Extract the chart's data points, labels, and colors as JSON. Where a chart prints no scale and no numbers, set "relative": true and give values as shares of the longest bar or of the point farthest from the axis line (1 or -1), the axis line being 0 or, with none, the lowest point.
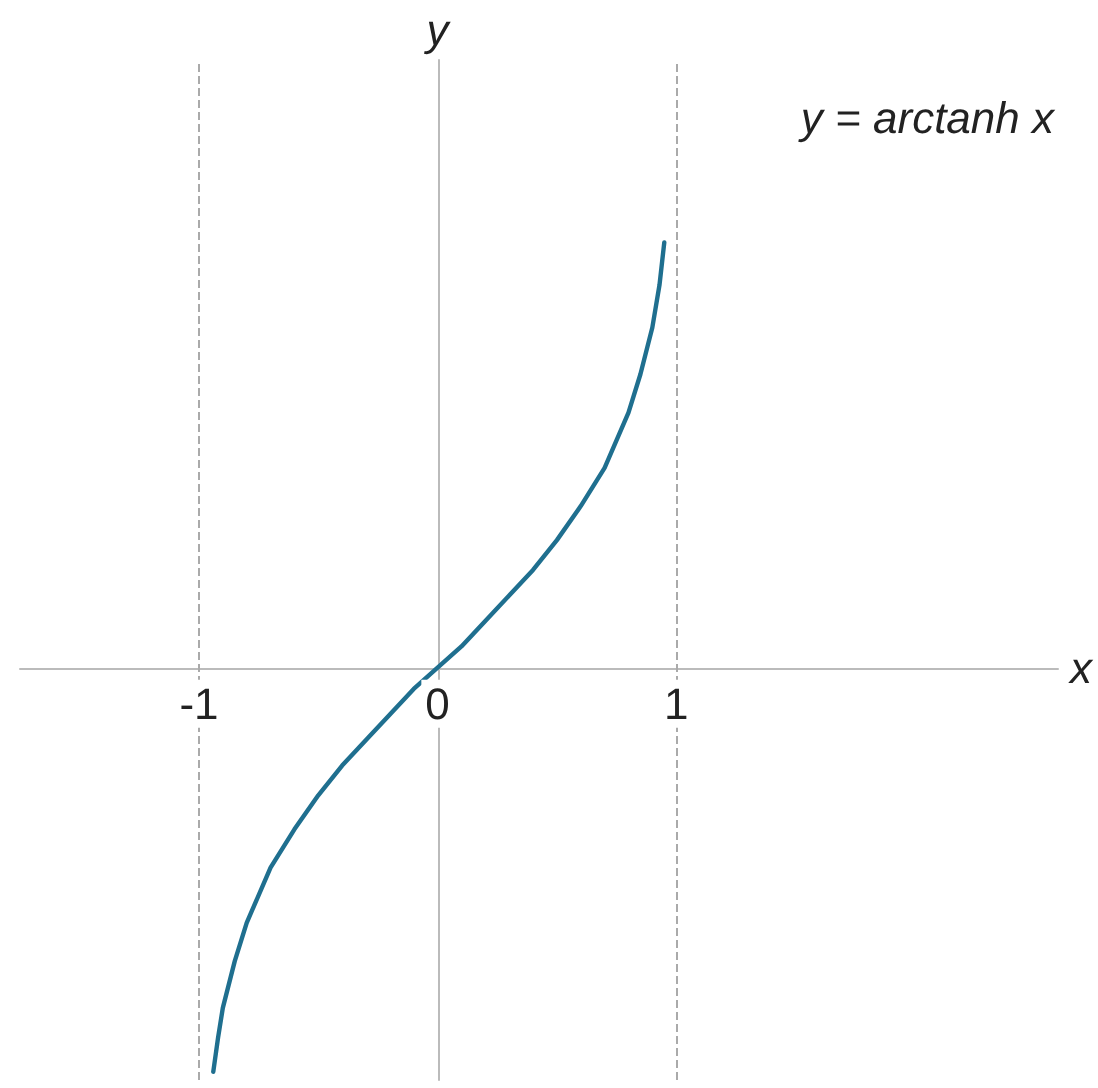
{
  "chart_data": {
    "type": "line",
    "relative": true,
    "xlabel": "x",
    "ylabel": "y",
    "annotations": [
      "y = arctanh x"
    ],
    "xlim": [
      -1.75,
      2.6
    ],
    "xticks": [
      -1,
      0,
      1
    ],
    "x": [
      -0.94,
      -0.92,
      -0.9,
      -0.85,
      -0.8,
      -0.7,
      -0.6,
      -0.5,
      -0.4,
      -0.3,
      -0.2,
      -0.1,
      0,
      0.1,
      0.2,
      0.3,
      0.4,
      0.5,
      0.6,
      0.7,
      0.8,
      0.85,
      0.9,
      0.93,
      0.95
    ],
    "series": [
      {
        "color": "#1f6f8f",
        "values": [
          -0.95,
          -0.87,
          -0.8,
          -0.69,
          -0.6,
          -0.47,
          -0.38,
          -0.3,
          -0.23,
          -0.17,
          -0.11,
          -0.05,
          0,
          0.05,
          0.11,
          0.17,
          0.23,
          0.3,
          0.38,
          0.47,
          0.6,
          0.69,
          0.8,
          0.9,
          1.0
        ]
      }
    ],
    "ref_lines": [
      {
        "axis": "x",
        "value": -1,
        "color": "#aaaaaa",
        "line_style": "dashed"
      },
      {
        "axis": "x",
        "value": 1,
        "color": "#aaaaaa",
        "line_style": "dashed"
      }
    ],
    "grid": false,
    "marker": "none",
    "line_style": "solid"
  }
}
